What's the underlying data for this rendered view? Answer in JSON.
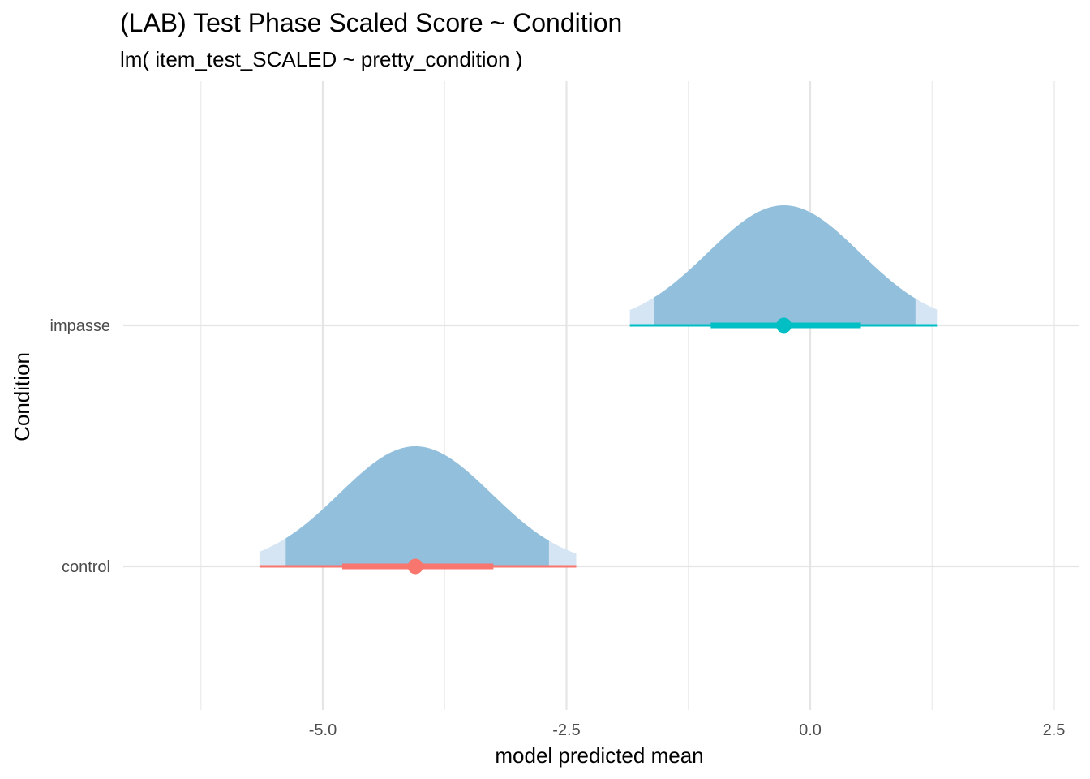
{
  "chart_data": {
    "type": "halfeye",
    "title": "(LAB) Test Phase Scaled Score ~ Condition",
    "subtitle": "lm( item_test_SCALED ~ pretty_condition )",
    "xlabel": "model predicted mean",
    "ylabel": "Condition",
    "xlim": [
      -6.25,
      2.7
    ],
    "x_ticks": [
      -5.0,
      -2.5,
      0.0,
      2.5
    ],
    "x_tick_labels": [
      "-5.0",
      "-2.5",
      "0.0",
      "2.5"
    ],
    "categories": [
      "control",
      "impasse"
    ],
    "grid": true,
    "series": [
      {
        "category": "control",
        "color": "#F8766D",
        "median": -4.05,
        "sd": 0.78,
        "interval_66": [
          -4.8,
          -3.25
        ],
        "interval_95": [
          -5.65,
          -2.4
        ],
        "density_inner": [
          -5.38,
          -2.68
        ],
        "density_outer": [
          -5.65,
          -2.4
        ]
      },
      {
        "category": "impasse",
        "color": "#00BFC4",
        "median": -0.27,
        "sd": 0.78,
        "interval_66": [
          -1.02,
          0.52
        ],
        "interval_95": [
          -1.85,
          1.3
        ],
        "density_inner": [
          -1.6,
          1.08
        ],
        "density_outer": [
          -1.85,
          1.3
        ]
      }
    ],
    "density_fill_inner": "#92BFDB",
    "density_fill_outer": "#D5E5F4"
  }
}
